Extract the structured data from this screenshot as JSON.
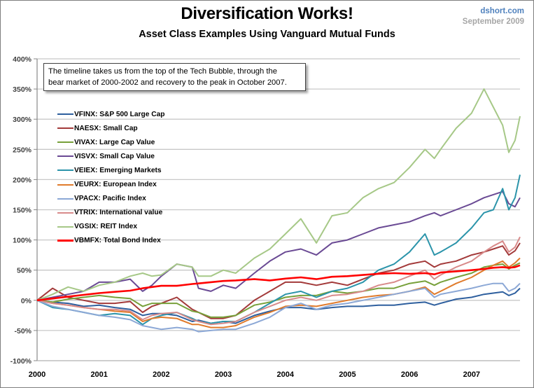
{
  "header": {
    "source": "dshort.com",
    "date": "September 2009"
  },
  "annotation": {
    "line1": "The timeline takes us from the top of the Tech Bubble, through the",
    "line2": "bear market of 2000-2002 and recovery to the peak in October 2007."
  },
  "chart_data": {
    "type": "line",
    "title": "Diversification Works!",
    "subtitle": "Asset Class Examples Using Vanguard Mutual Funds",
    "xlabel": "",
    "ylabel": "",
    "xlim": [
      2000,
      2007.78
    ],
    "ylim": [
      -100,
      400
    ],
    "grid": true,
    "legend_position": "top-left",
    "x_ticks": [
      "2000",
      "2001",
      "2002",
      "2003",
      "2004",
      "2005",
      "2006",
      "2007"
    ],
    "y_ticks": [
      "400%",
      "350%",
      "300%",
      "250%",
      "200%",
      "150%",
      "100%",
      "50%",
      "0%",
      "-50%",
      "-100%"
    ],
    "y_tick_values": [
      400,
      350,
      300,
      250,
      200,
      150,
      100,
      50,
      0,
      -50,
      -100
    ],
    "x": [
      2000.0,
      2000.25,
      2000.5,
      2000.75,
      2001.0,
      2001.25,
      2001.5,
      2001.7,
      2001.85,
      2002.0,
      2002.25,
      2002.5,
      2002.6,
      2002.8,
      2003.0,
      2003.2,
      2003.5,
      2003.75,
      2004.0,
      2004.25,
      2004.5,
      2004.75,
      2005.0,
      2005.25,
      2005.5,
      2005.75,
      2006.0,
      2006.25,
      2006.4,
      2006.5,
      2006.75,
      2007.0,
      2007.2,
      2007.35,
      2007.5,
      2007.6,
      2007.7,
      2007.78
    ],
    "series": [
      {
        "name": "VFINX: S&P 500 Large Cap",
        "color": "#2e5f9e",
        "width": 2,
        "values": [
          0,
          -3,
          -5,
          -10,
          -8,
          -12,
          -15,
          -25,
          -22,
          -22,
          -25,
          -35,
          -33,
          -38,
          -35,
          -38,
          -25,
          -18,
          -12,
          -12,
          -15,
          -12,
          -10,
          -10,
          -8,
          -8,
          -5,
          -3,
          -8,
          -5,
          2,
          5,
          10,
          12,
          14,
          8,
          12,
          20
        ]
      },
      {
        "name": "NAESX: Small Cap",
        "color": "#a33a3a",
        "width": 2,
        "values": [
          0,
          20,
          5,
          0,
          -5,
          -5,
          -2,
          -20,
          -10,
          -5,
          5,
          -15,
          -20,
          -30,
          -30,
          -25,
          0,
          15,
          30,
          30,
          25,
          30,
          25,
          35,
          45,
          50,
          60,
          65,
          55,
          60,
          65,
          75,
          80,
          85,
          90,
          75,
          82,
          95
        ]
      },
      {
        "name": "VIVAX: Large Cap Value",
        "color": "#77a03a",
        "width": 2,
        "values": [
          0,
          -3,
          2,
          5,
          8,
          5,
          3,
          -10,
          -5,
          -5,
          -5,
          -18,
          -20,
          -28,
          -28,
          -25,
          -8,
          -3,
          5,
          8,
          8,
          15,
          12,
          15,
          20,
          20,
          28,
          32,
          25,
          30,
          38,
          45,
          55,
          58,
          60,
          52,
          58,
          62
        ]
      },
      {
        "name": "VISVX: Small Cap Value",
        "color": "#6a4a94",
        "width": 2,
        "values": [
          0,
          5,
          10,
          15,
          30,
          30,
          35,
          15,
          25,
          40,
          60,
          55,
          20,
          15,
          25,
          20,
          45,
          65,
          80,
          85,
          75,
          95,
          100,
          110,
          120,
          125,
          130,
          140,
          145,
          140,
          150,
          160,
          170,
          175,
          180,
          160,
          155,
          170
        ]
      },
      {
        "name": "VEIEX: Emerging Markets",
        "color": "#2b94aa",
        "width": 2,
        "values": [
          0,
          -12,
          -15,
          -20,
          -25,
          -22,
          -25,
          -40,
          -30,
          -25,
          -20,
          -30,
          -35,
          -38,
          -35,
          -35,
          -20,
          -5,
          10,
          15,
          5,
          15,
          20,
          30,
          50,
          60,
          80,
          110,
          75,
          80,
          95,
          120,
          145,
          150,
          185,
          150,
          170,
          208
        ]
      },
      {
        "name": "VEURX: European Index",
        "color": "#e07b2c",
        "width": 2,
        "values": [
          0,
          -5,
          -8,
          -12,
          -15,
          -18,
          -20,
          -35,
          -30,
          -28,
          -30,
          -40,
          -40,
          -45,
          -45,
          -42,
          -28,
          -20,
          -10,
          -8,
          -10,
          -5,
          0,
          5,
          8,
          10,
          15,
          22,
          10,
          15,
          28,
          38,
          50,
          58,
          65,
          55,
          62,
          70
        ]
      },
      {
        "name": "VPACX: Pacific Index",
        "color": "#8ca8d6",
        "width": 2,
        "values": [
          0,
          -10,
          -15,
          -20,
          -25,
          -28,
          -32,
          -42,
          -45,
          -48,
          -45,
          -48,
          -52,
          -50,
          -48,
          -48,
          -38,
          -28,
          -12,
          -5,
          -15,
          -8,
          -5,
          0,
          5,
          10,
          15,
          20,
          5,
          10,
          15,
          20,
          25,
          28,
          28,
          15,
          20,
          28
        ]
      },
      {
        "name": "VTRIX: International value",
        "color": "#d88a8a",
        "width": 2,
        "values": [
          0,
          -5,
          -8,
          -12,
          -15,
          -15,
          -18,
          -32,
          -25,
          -22,
          -20,
          -32,
          -35,
          -40,
          -38,
          -35,
          -20,
          -10,
          0,
          5,
          0,
          8,
          10,
          15,
          25,
          30,
          40,
          50,
          35,
          42,
          55,
          65,
          80,
          90,
          98,
          80,
          88,
          105
        ]
      },
      {
        "name": "VGSIX: REIT Index",
        "color": "#a6c887",
        "width": 2,
        "values": [
          0,
          10,
          22,
          15,
          25,
          30,
          40,
          45,
          40,
          42,
          60,
          55,
          40,
          40,
          50,
          45,
          70,
          85,
          110,
          135,
          95,
          140,
          145,
          170,
          185,
          195,
          220,
          250,
          235,
          250,
          285,
          310,
          350,
          320,
          290,
          245,
          265,
          305
        ]
      },
      {
        "name": "VBMFX: Total Bond Index",
        "color": "#ff0000",
        "width": 2.6,
        "values": [
          0,
          3,
          6,
          9,
          12,
          14,
          16,
          20,
          22,
          24,
          24,
          27,
          28,
          30,
          32,
          33,
          35,
          33,
          36,
          38,
          35,
          39,
          40,
          42,
          44,
          45,
          44,
          45,
          43,
          46,
          48,
          50,
          52,
          54,
          55,
          54,
          55,
          58
        ]
      }
    ]
  }
}
